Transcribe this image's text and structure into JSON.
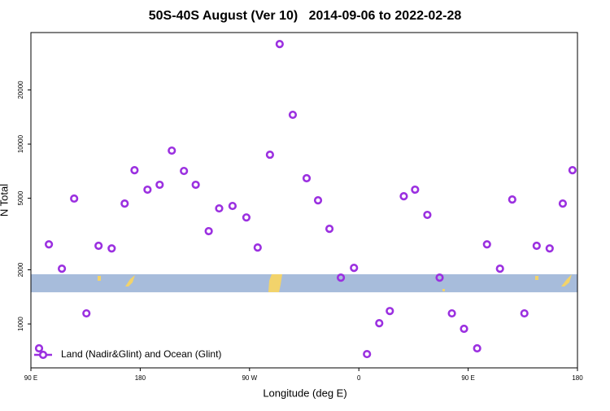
{
  "chart_data": {
    "type": "scatter",
    "title": "50S-40S August (Ver 10)   2014-09-06 to 2022-02-28",
    "x_label": "Longitude (deg E)",
    "y_label": "N Total",
    "log_y": true,
    "legend": "bottom-left",
    "xlim": [
      90,
      540
    ],
    "xticks": [
      {
        "value": 90,
        "label": "90 E"
      },
      180,
      {
        "value": 270,
        "label": "90 W"
      },
      {
        "value": 360,
        "label": "0"
      },
      {
        "value": 450,
        "label": "90 E"
      },
      {
        "value": 540,
        "label": "180"
      }
    ],
    "ylim": [
      570,
      41700
    ],
    "yticks": [
      1000,
      2000,
      5000,
      10000,
      20000
    ],
    "band": [
      1500,
      1890
    ],
    "band_color": "#a7bcdb",
    "series": [
      {
        "name": "Land (Nadir&Glint) and Ocean (Glint)",
        "color": "#9b30e0",
        "x": [
          96.7,
          104.8,
          115.5,
          125.6,
          135.7,
          145.7,
          156.5,
          167.2,
          175.3,
          186,
          196,
          206,
          216,
          225.7,
          236.4,
          245,
          256,
          267.4,
          276.7,
          286.8,
          294.8,
          305.6,
          317,
          326.4,
          335.8,
          345.2,
          356,
          366.7,
          376.8,
          385.5,
          397,
          406.3,
          416.4,
          426.5,
          436.6,
          446.6,
          457.4,
          465.5,
          476.2,
          486.3,
          496.3,
          506.4,
          517.1,
          527.9,
          535.9
        ],
        "values": [
          732,
          2770,
          2030,
          4980,
          1145,
          2720,
          2630,
          4670,
          7160,
          5580,
          5940,
          9200,
          7090,
          5940,
          3280,
          4390,
          4530,
          3910,
          2660,
          8730,
          36000,
          14550,
          6460,
          4870,
          3380,
          1810,
          2050,
          680,
          1010,
          1180,
          5130,
          5580,
          4040,
          1810,
          1145,
          940,
          732,
          2770,
          2030,
          4920,
          1145,
          2720,
          2630,
          4670,
          7160
        ]
      }
    ]
  }
}
